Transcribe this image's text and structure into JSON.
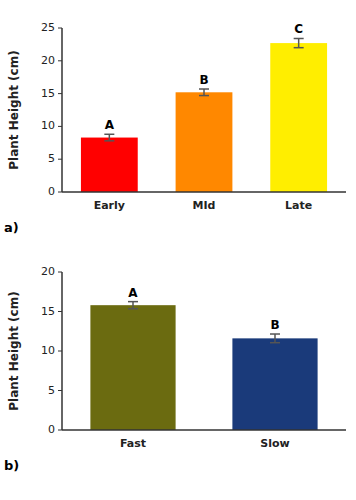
{
  "chart_data": [
    {
      "type": "bar",
      "title": "a)",
      "categories": [
        "Early",
        "MId",
        "Late"
      ],
      "values": [
        8.3,
        15.2,
        22.7
      ],
      "errors": [
        0.5,
        0.5,
        0.7
      ],
      "colors": [
        "#ff0000",
        "#ff8800",
        "#ffee00"
      ],
      "annotations": [
        "A",
        "B",
        "C"
      ],
      "y_label": "Plant Height (cm)",
      "ylim": [
        0,
        25
      ],
      "yticks": [
        0,
        5,
        10,
        15,
        20,
        25
      ],
      "grid": false
    },
    {
      "type": "bar",
      "title": "b)",
      "categories": [
        "Fast",
        "Slow"
      ],
      "values": [
        15.8,
        11.6
      ],
      "errors": [
        0.45,
        0.55
      ],
      "colors": [
        "#6b6b10",
        "#1a3a7a"
      ],
      "annotations": [
        "A",
        "B"
      ],
      "y_label": "Plant Height (cm)",
      "ylim": [
        0,
        20
      ],
      "yticks": [
        0,
        5,
        10,
        15,
        20
      ],
      "grid": false
    }
  ]
}
